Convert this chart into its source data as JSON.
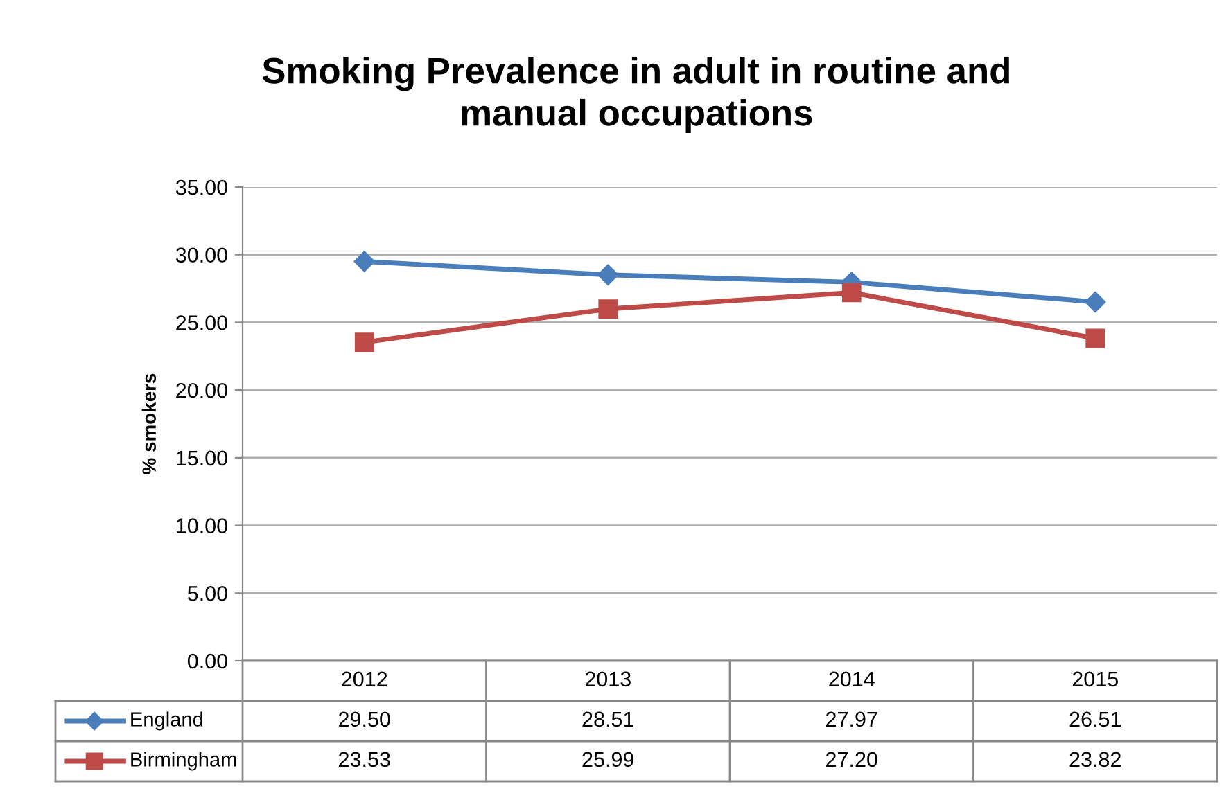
{
  "chart_data": {
    "type": "line",
    "title": "Smoking Prevalence in adult in routine and\nmanual occupations",
    "ylabel": "% smokers",
    "categories": [
      "2012",
      "2013",
      "2014",
      "2015"
    ],
    "series": [
      {
        "name": "England",
        "color": "#4a7ebb",
        "marker": "diamond",
        "values": [
          29.5,
          28.51,
          27.97,
          26.51
        ],
        "value_labels": [
          "29.50",
          "28.51",
          "27.97",
          "26.51"
        ]
      },
      {
        "name": "Birmingham",
        "color": "#be4b48",
        "marker": "square",
        "values": [
          23.53,
          25.99,
          27.2,
          23.82
        ],
        "value_labels": [
          "23.53",
          "25.99",
          "27.20",
          "23.82"
        ]
      }
    ],
    "ylim": [
      0,
      35
    ],
    "yticks": [
      "0.00",
      "5.00",
      "10.00",
      "15.00",
      "20.00",
      "25.00",
      "30.00",
      "35.00"
    ],
    "grid": "y",
    "legend": "bottom",
    "line_style": "solid"
  }
}
